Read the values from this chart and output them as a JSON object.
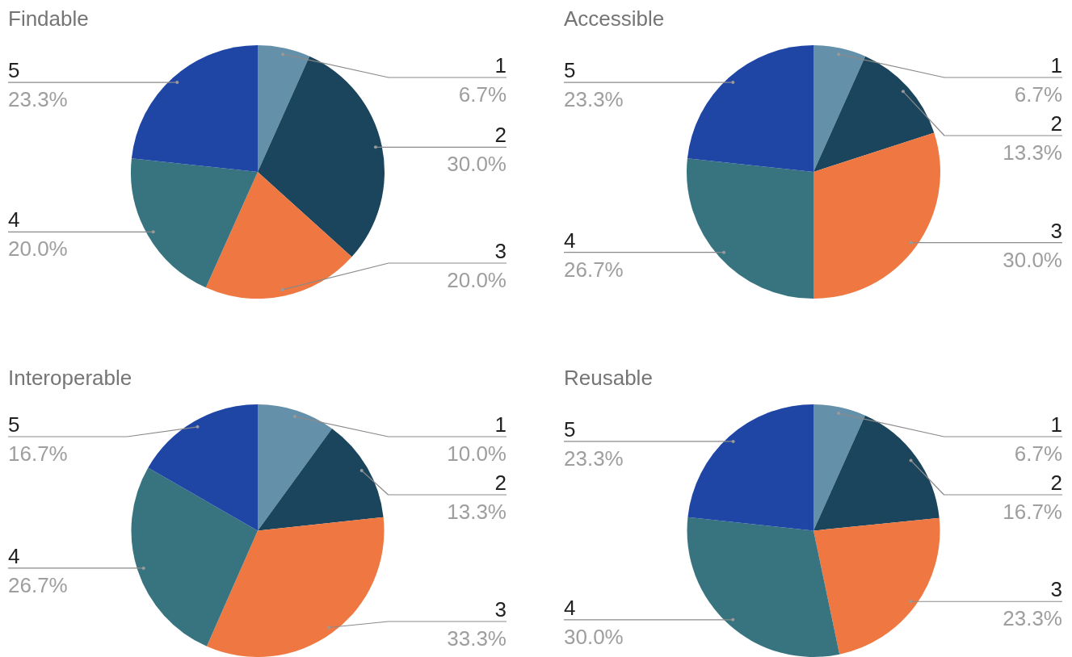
{
  "chart_data": [
    {
      "type": "pie",
      "title": "Findable",
      "categories": [
        "1",
        "2",
        "3",
        "4",
        "5"
      ],
      "values": [
        6.7,
        30.0,
        20.0,
        20.0,
        23.3
      ],
      "value_labels": [
        "6.7%",
        "30.0%",
        "20.0%",
        "20.0%",
        "23.3%"
      ],
      "colors": [
        "#6490aa",
        "#1a455c",
        "#ef7742",
        "#377480",
        "#1f46a5"
      ]
    },
    {
      "type": "pie",
      "title": "Accessible",
      "categories": [
        "1",
        "2",
        "3",
        "4",
        "5"
      ],
      "values": [
        6.7,
        13.3,
        30.0,
        26.7,
        23.3
      ],
      "value_labels": [
        "6.7%",
        "13.3%",
        "30.0%",
        "26.7%",
        "23.3%"
      ],
      "colors": [
        "#6490aa",
        "#1a455c",
        "#ef7742",
        "#377480",
        "#1f46a5"
      ]
    },
    {
      "type": "pie",
      "title": "Interoperable",
      "categories": [
        "1",
        "2",
        "3",
        "4",
        "5"
      ],
      "values": [
        10.0,
        13.3,
        33.3,
        26.7,
        16.7
      ],
      "value_labels": [
        "10.0%",
        "13.3%",
        "33.3%",
        "26.7%",
        "16.7%"
      ],
      "colors": [
        "#6490aa",
        "#1a455c",
        "#ef7742",
        "#377480",
        "#1f46a5"
      ]
    },
    {
      "type": "pie",
      "title": "Reusable",
      "categories": [
        "1",
        "2",
        "3",
        "4",
        "5"
      ],
      "values": [
        6.7,
        16.7,
        23.3,
        30.0,
        23.3
      ],
      "value_labels": [
        "6.7%",
        "16.7%",
        "23.3%",
        "30.0%",
        "23.3%"
      ],
      "colors": [
        "#6490aa",
        "#1a455c",
        "#ef7742",
        "#377480",
        "#1f46a5"
      ]
    }
  ]
}
